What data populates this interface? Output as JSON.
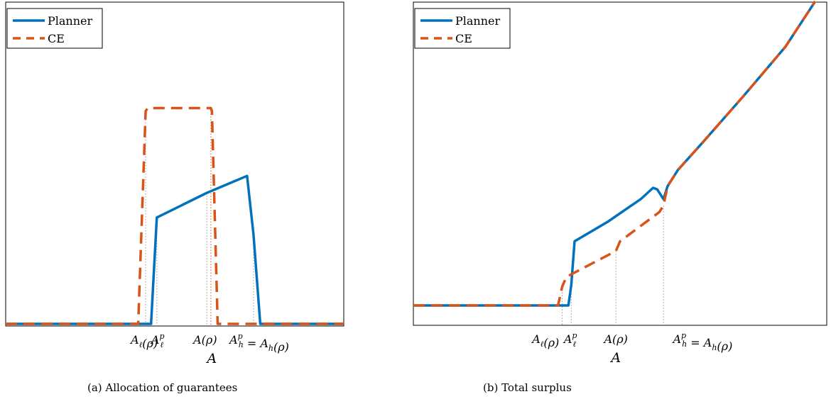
{
  "colors": {
    "planner": "#0072BD",
    "ce": "#D95319",
    "axis": "#000000",
    "guide_grey": "#999999",
    "guide_red": "#D95319"
  },
  "panels": [
    {
      "caption": "(a) Allocation of guarantees",
      "xlabel": "A",
      "ylabel": ""
    },
    {
      "caption": "(b) Total surplus",
      "xlabel": "A",
      "ylabel": ""
    }
  ],
  "chart_data": [
    {
      "type": "line",
      "title": "(a) Allocation of guarantees",
      "xlabel": "A",
      "ylabel": "",
      "xlim": [
        0,
        1
      ],
      "ylim": [
        0,
        1
      ],
      "grid": false,
      "legend": "top-left",
      "ticks": [
        {
          "x": 0.41,
          "label": "A_ℓ(ρ)"
        },
        {
          "x": 0.45,
          "label": "A_ℓ^p"
        },
        {
          "x": 0.59,
          "label": "A(ρ)"
        },
        {
          "x": 0.75,
          "label": "A_h^p = A_h(ρ)"
        }
      ],
      "series": [
        {
          "name": "Planner",
          "style": "solid",
          "x": [
            0,
            0.43,
            0.447,
            0.595,
            0.714,
            0.733,
            0.753,
            1
          ],
          "y": [
            0,
            0,
            0.345,
            0.425,
            0.48,
            0.29,
            0,
            0
          ]
        },
        {
          "name": "CE",
          "style": "dashed",
          "x": [
            0,
            0.392,
            0.414,
            0.42,
            0.607,
            0.61,
            0.627,
            1
          ],
          "y": [
            0,
            0,
            0.69,
            0.7,
            0.7,
            0.69,
            0,
            0
          ]
        }
      ],
      "guides": [
        {
          "x": 0.414,
          "y": 0.69,
          "color": "grey"
        },
        {
          "x": 0.447,
          "y": 0.345,
          "color": "grey"
        },
        {
          "x": 0.607,
          "y": 0.7,
          "color": "red"
        },
        {
          "x": 0.595,
          "y": 0.425,
          "color": "grey"
        },
        {
          "x": 0.733,
          "y": 0.29,
          "color": "grey"
        }
      ]
    },
    {
      "type": "line",
      "title": "(b) Total surplus",
      "xlabel": "A",
      "ylabel": "",
      "xlim": [
        0,
        1
      ],
      "ylim": [
        0,
        1
      ],
      "grid": false,
      "legend": "top-left",
      "ticks": [
        {
          "x": 0.32,
          "label": "A_ℓ(ρ)"
        },
        {
          "x": 0.38,
          "label": "A_ℓ^p"
        },
        {
          "x": 0.49,
          "label": "A(ρ)"
        },
        {
          "x": 0.7,
          "label": "A_h^p = A_h(ρ)"
        }
      ],
      "series": [
        {
          "name": "Planner",
          "style": "solid",
          "x": [
            0,
            0.375,
            0.382,
            0.39,
            0.47,
            0.55,
            0.58,
            0.59,
            0.605,
            0.615,
            0.64,
            0.7,
            0.8,
            0.9,
            0.972
          ],
          "y": [
            0.062,
            0.062,
            0.125,
            0.26,
            0.32,
            0.39,
            0.425,
            0.42,
            0.39,
            0.43,
            0.48,
            0.565,
            0.71,
            0.86,
            1.0
          ]
        },
        {
          "name": "CE",
          "style": "dashed",
          "x": [
            0,
            0.35,
            0.36,
            0.37,
            0.49,
            0.5,
            0.595,
            0.605,
            0.615,
            0.64,
            0.7,
            0.8,
            0.9,
            0.972
          ],
          "y": [
            0.062,
            0.062,
            0.12,
            0.15,
            0.23,
            0.26,
            0.35,
            0.37,
            0.43,
            0.48,
            0.565,
            0.71,
            0.86,
            1.0
          ]
        }
      ],
      "guides": [
        {
          "x": 0.36,
          "y": 0.12,
          "color": "grey"
        },
        {
          "x": 0.382,
          "y": 0.125,
          "color": "grey"
        },
        {
          "x": 0.49,
          "y": 0.23,
          "color": "grey"
        },
        {
          "x": 0.605,
          "y": 0.37,
          "color": "grey"
        }
      ]
    }
  ],
  "legend": [
    {
      "name": "Planner",
      "style": "solid"
    },
    {
      "name": "CE",
      "style": "dashed"
    }
  ]
}
